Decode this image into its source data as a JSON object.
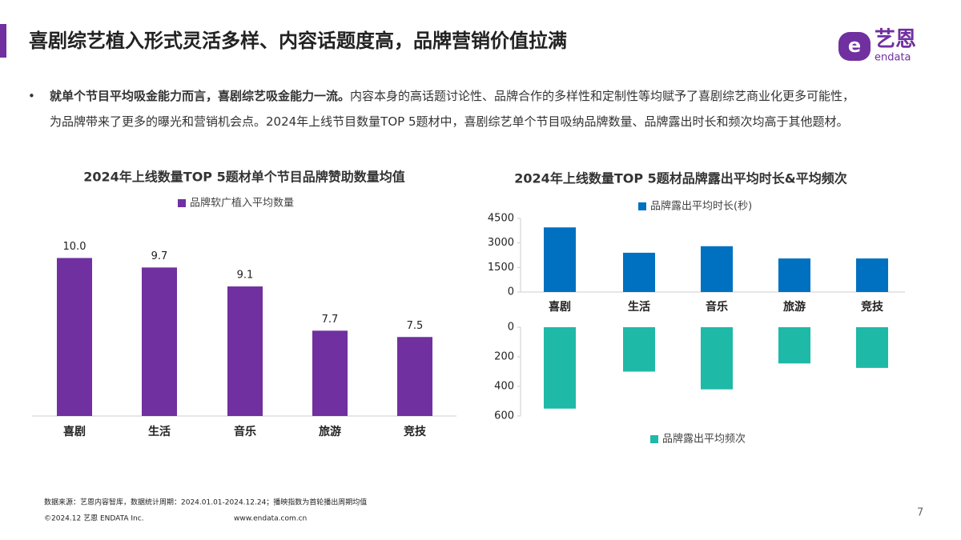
{
  "header": {
    "title": "喜剧综艺植入形式灵活多样、内容话题度高，品牌营销价值拉满",
    "logo_text": "艺恩",
    "logo_sub": "endata"
  },
  "body": {
    "bullet": "•",
    "bold": "就单个节目平均吸金能力而言，喜剧综艺吸金能力一流。",
    "text": "内容本身的高话题讨论性、品牌合作的多样性和定制性等均赋予了喜剧综艺商业化更多可能性，为品牌带来了更多的曝光和营销机会点。2024年上线节目数量TOP 5题材中，喜剧综艺单个节目吸纳品牌数量、品牌露出时长和频次均高于其他题材。"
  },
  "chart_data": [
    {
      "type": "bar",
      "title": "2024年上线数量TOP 5题材单个节目品牌赞助数量均值",
      "categories": [
        "喜剧",
        "生活",
        "音乐",
        "旅游",
        "竞技"
      ],
      "series": [
        {
          "name": "品牌软广植入平均数量",
          "color": "#7030a0",
          "values": [
            10.0,
            9.7,
            9.1,
            7.7,
            7.5
          ],
          "value_labels": [
            "10.0",
            "9.7",
            "9.1",
            "7.7",
            "7.5"
          ]
        }
      ],
      "ylim": [
        5,
        11
      ]
    },
    {
      "type": "bar",
      "title": "2024年上线数量TOP 5题材品牌露出平均时长&平均频次",
      "categories": [
        "喜剧",
        "生活",
        "音乐",
        "旅游",
        "竞技"
      ],
      "series": [
        {
          "name": "品牌露出平均时长(秒)",
          "color": "#0070c0",
          "values": [
            3950,
            2400,
            2800,
            2050,
            2050
          ]
        }
      ],
      "ylim": [
        0,
        4500
      ],
      "yticks": [
        0,
        1500,
        3000,
        4500
      ]
    },
    {
      "type": "bar",
      "inverted": true,
      "categories": [
        null,
        null,
        null,
        null,
        null
      ],
      "series": [
        {
          "name": "品牌露出平均频次",
          "color": "#1fb9a8",
          "values": [
            550,
            300,
            420,
            245,
            275
          ]
        }
      ],
      "ylim": [
        0,
        600
      ],
      "yticks": [
        0,
        200,
        400,
        600
      ]
    }
  ],
  "footer": {
    "source": "数据来源：艺恩内容智库，数据统计周期：2024.01.01-2024.12.24；播映指数为首轮播出周期均值",
    "copyright": "©2024.12 艺恩 ENDATA Inc.",
    "url": "www.endata.com.cn",
    "page": "7"
  }
}
